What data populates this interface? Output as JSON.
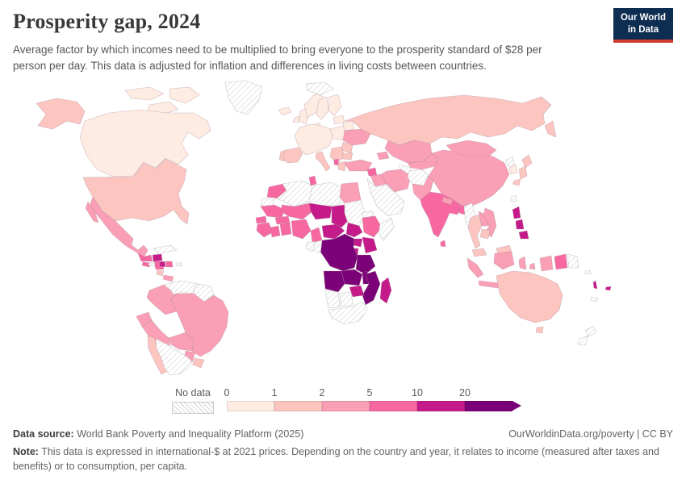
{
  "header": {
    "title": "Prosperity gap, 2024",
    "subtitle": "Average factor by which incomes need to be multiplied to bring everyone to the prosperity standard of $28 per person per day. This data is adjusted for inflation and differences in living costs between countries.",
    "logo": {
      "line1": "Our World",
      "line2": "in Data",
      "bg_color": "#0d2d51",
      "accent_color": "#cf3d32"
    }
  },
  "legend": {
    "no_data_label": "No data"
  },
  "chart_data": {
    "type": "heatmap",
    "map_subtype": "world-choropleth",
    "title": "Prosperity gap, 2024",
    "year": "2024",
    "unit": "factor (×) by which incomes must be multiplied to reach the $28/day prosperity standard",
    "legend_position": "bottom",
    "border_color": "#a98b99",
    "no_data_border": "#c6c6c6",
    "no_data_fill": "diagonal-hatch",
    "bins": [
      {
        "tick": "0",
        "range": "0-1",
        "color": "#feebe2"
      },
      {
        "tick": "1",
        "range": "1-2",
        "color": "#fcc5c0"
      },
      {
        "tick": "2",
        "range": "2-5",
        "color": "#fa9fb5"
      },
      {
        "tick": "5",
        "range": "5-10",
        "color": "#f768a1"
      },
      {
        "tick": "10",
        "range": "10-20",
        "color": "#c51b8a"
      },
      {
        "tick": "20",
        "range": "20+",
        "color": "#7a0177"
      }
    ],
    "countries": {
      "Canada": 0,
      "United States": 1,
      "Greenland": "no-data",
      "Svalbard": "no-data",
      "Iceland": 0,
      "United Kingdom": 0,
      "Ireland": 0,
      "Norway": 0,
      "Sweden": 0,
      "Finland": 0,
      "Denmark": 0,
      "Western Europe": 0,
      "Portugal": 1,
      "Spain": 1,
      "Italy": 1,
      "Central Europe": 0,
      "Baltics": 0,
      "Belarus": 0,
      "Ukraine": 2,
      "Romania": 1,
      "Balkans": 1,
      "Albania": 3,
      "Greece": 1,
      "Bulgaria": 1,
      "Russia": 1,
      "Kazakhstan": 2,
      "Central Asia": 2,
      "Turkmenistan": "no-data",
      "Caucasus": 2,
      "Turkey": 2,
      "Syria": 3,
      "Iraq": 2,
      "Iran": 2,
      "Afghanistan": "no-data",
      "Pakistan": 2,
      "Arabian Peninsula": "no-data",
      "India": 3,
      "Nepal": 2,
      "Bangladesh": 3,
      "Sri Lanka": 3,
      "China": 2,
      "Mongolia": 2,
      "North Korea": "no-data",
      "South Korea": 0,
      "Japan": 1,
      "Myanmar": "no-data",
      "Thailand": 1,
      "Laos": 2,
      "Vietnam": 2,
      "Cambodia": 1,
      "Malaysia": 1,
      "Indonesia": 2,
      "Philippines": 4,
      "Taiwan": "no-data",
      "Papua New Guinea": 3,
      "Solomon Islands": "no-data",
      "Australia": 1,
      "New Zealand": "no-data",
      "Vanuatu": 4,
      "Fiji": 4,
      "New Caledonia": "no-data",
      "Morocco": 3,
      "Western Sahara": "no-data",
      "Algeria": "no-data",
      "Tunisia": 3,
      "Libya": "no-data",
      "Egypt": 2,
      "Mauritania": 3,
      "Mali": 3,
      "Niger": 4,
      "Chad": 4,
      "Sudan": "no-data",
      "Eritrea": "no-data",
      "Senegal": 3,
      "Guinea": 3,
      "Cote d'Ivoire": 3,
      "Ghana": 3,
      "Burkina Faso": 3,
      "Nigeria": 3,
      "Cameroon": 3,
      "Central African Republic": 4,
      "South Sudan": 4,
      "Ethiopia": 3,
      "Somalia": "no-data",
      "Uganda": 4,
      "Kenya": 4,
      "Rwanda": 4,
      "DR Congo": 5,
      "Congo": "no-data",
      "Gabon": "no-data",
      "Tanzania": 5,
      "Angola": 5,
      "Zambia": 5,
      "Malawi": 5,
      "Mozambique": 5,
      "Zimbabwe": 4,
      "Namibia": "no-data",
      "Botswana": "no-data",
      "South Africa": "no-data",
      "Madagascar": 4,
      "Mexico": 2,
      "Guatemala": 3,
      "Honduras": 4,
      "El Salvador": 3,
      "Nicaragua": 3,
      "Costa Rica": 1,
      "Panama": 2,
      "Cuba": "no-data",
      "Haiti": 4,
      "Dominican Republic": 3,
      "Jamaica": "no-data",
      "Puerto Rico": "no-data",
      "Colombia": 2,
      "Venezuela": "no-data",
      "Guyana": "no-data",
      "Ecuador": 2,
      "Peru": 2,
      "Brazil": 2,
      "Bolivia": 2,
      "Paraguay": 2,
      "Uruguay": 1,
      "Chile": 1,
      "Argentina": "no-data"
    }
  },
  "footer": {
    "source_label": "Data source:",
    "source_value": "World Bank Poverty and Inequality Platform (2025)",
    "credit": "OurWorldinData.org/poverty | CC BY",
    "note_label": "Note:",
    "note_text": "This data is expressed in international-$ at 2021 prices. Depending on the country and year, it relates to income (measured after taxes and benefits) or to consumption, per capita."
  }
}
